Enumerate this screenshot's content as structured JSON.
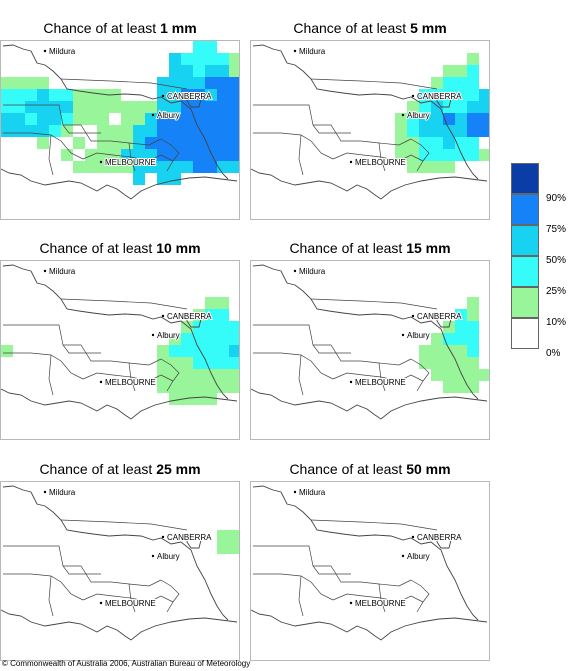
{
  "colors": {
    "c10": "#99f599",
    "c25": "#36fcf9",
    "c50": "#18d2f2",
    "c75": "#1582f8",
    "c90": "#0a3ea6",
    "outline": "#444444"
  },
  "panels": [
    {
      "prefix": "Chance of at least ",
      "amount": "1 mm"
    },
    {
      "prefix": "Chance of at least ",
      "amount": "5 mm"
    },
    {
      "prefix": "Chance of at least ",
      "amount": "10 mm"
    },
    {
      "prefix": "Chance of at least ",
      "amount": "15 mm"
    },
    {
      "prefix": "Chance of at least ",
      "amount": "25 mm"
    },
    {
      "prefix": "Chance of at least ",
      "amount": "50 mm"
    }
  ],
  "places": {
    "mildura": "Mildura",
    "canberra": "CANBERRA",
    "albury": "Albury",
    "melbourne": "MELBOURNE"
  },
  "legend": {
    "labels": [
      "90%",
      "75%",
      "50%",
      "25%",
      "10%",
      "0%"
    ]
  },
  "footer": "© Commonwealth of Australia 2006, Australian Bureau of Meteorology"
}
